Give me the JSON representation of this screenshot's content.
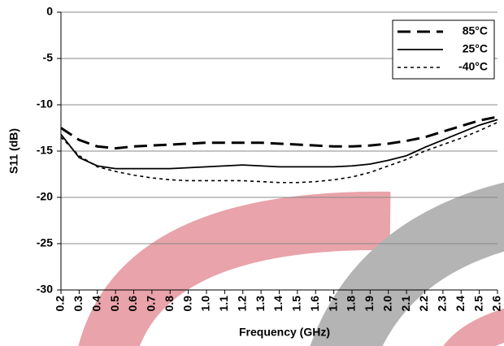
{
  "chart_data": {
    "type": "line",
    "xlabel": "Frequency (GHz)",
    "ylabel": "S11 (dB)",
    "x": [
      0.2,
      0.3,
      0.4,
      0.5,
      0.6,
      0.7,
      0.8,
      0.9,
      1.0,
      1.1,
      1.2,
      1.3,
      1.4,
      1.5,
      1.6,
      1.7,
      1.8,
      1.9,
      2.0,
      2.1,
      2.2,
      2.3,
      2.4,
      2.5,
      2.6
    ],
    "xlim": [
      0.2,
      2.6
    ],
    "xticks": [
      0.2,
      0.3,
      0.4,
      0.5,
      0.6,
      0.7,
      0.8,
      0.9,
      {
        "value": 1,
        "label": "1.0"
      },
      1.1,
      1.2,
      1.3,
      1.4,
      1.5,
      1.6,
      1.7,
      1.8,
      1.9,
      {
        "value": 2,
        "label": "2.0"
      },
      2.1,
      2.2,
      2.3,
      2.4,
      2.5,
      2.6
    ],
    "ylim": [
      -30,
      0
    ],
    "yticks": [
      0,
      -5,
      -10,
      -15,
      -20,
      -25,
      -30
    ],
    "grid": true,
    "legend": "upper right",
    "series": [
      {
        "name": "85°C",
        "color": "#000000",
        "linestyle": "dashed",
        "values": [
          -12.5,
          -13.8,
          -14.5,
          -14.7,
          -14.5,
          -14.4,
          -14.3,
          -14.2,
          -14.1,
          -14.1,
          -14.1,
          -14.1,
          -14.2,
          -14.3,
          -14.4,
          -14.5,
          -14.5,
          -14.4,
          -14.2,
          -13.9,
          -13.5,
          -12.9,
          -12.3,
          -11.7,
          -11.3
        ]
      },
      {
        "name": "25°C",
        "color": "#000000",
        "linestyle": "solid",
        "values": [
          -13.2,
          -15.7,
          -16.6,
          -16.9,
          -16.9,
          -16.9,
          -16.9,
          -16.8,
          -16.7,
          -16.6,
          -16.5,
          -16.6,
          -16.7,
          -16.7,
          -16.7,
          -16.7,
          -16.6,
          -16.4,
          -16.0,
          -15.5,
          -14.6,
          -13.8,
          -13.0,
          -12.2,
          -11.6
        ]
      },
      {
        "name": "-40°C",
        "color": "#000000",
        "linestyle": "dotted",
        "values": [
          -13.5,
          -15.5,
          -16.7,
          -17.2,
          -17.6,
          -17.9,
          -18.1,
          -18.2,
          -18.2,
          -18.2,
          -18.2,
          -18.3,
          -18.4,
          -18.4,
          -18.3,
          -18.1,
          -17.8,
          -17.3,
          -16.6,
          -15.9,
          -15.0,
          -14.3,
          -13.6,
          -12.8,
          -11.9
        ]
      }
    ]
  }
}
